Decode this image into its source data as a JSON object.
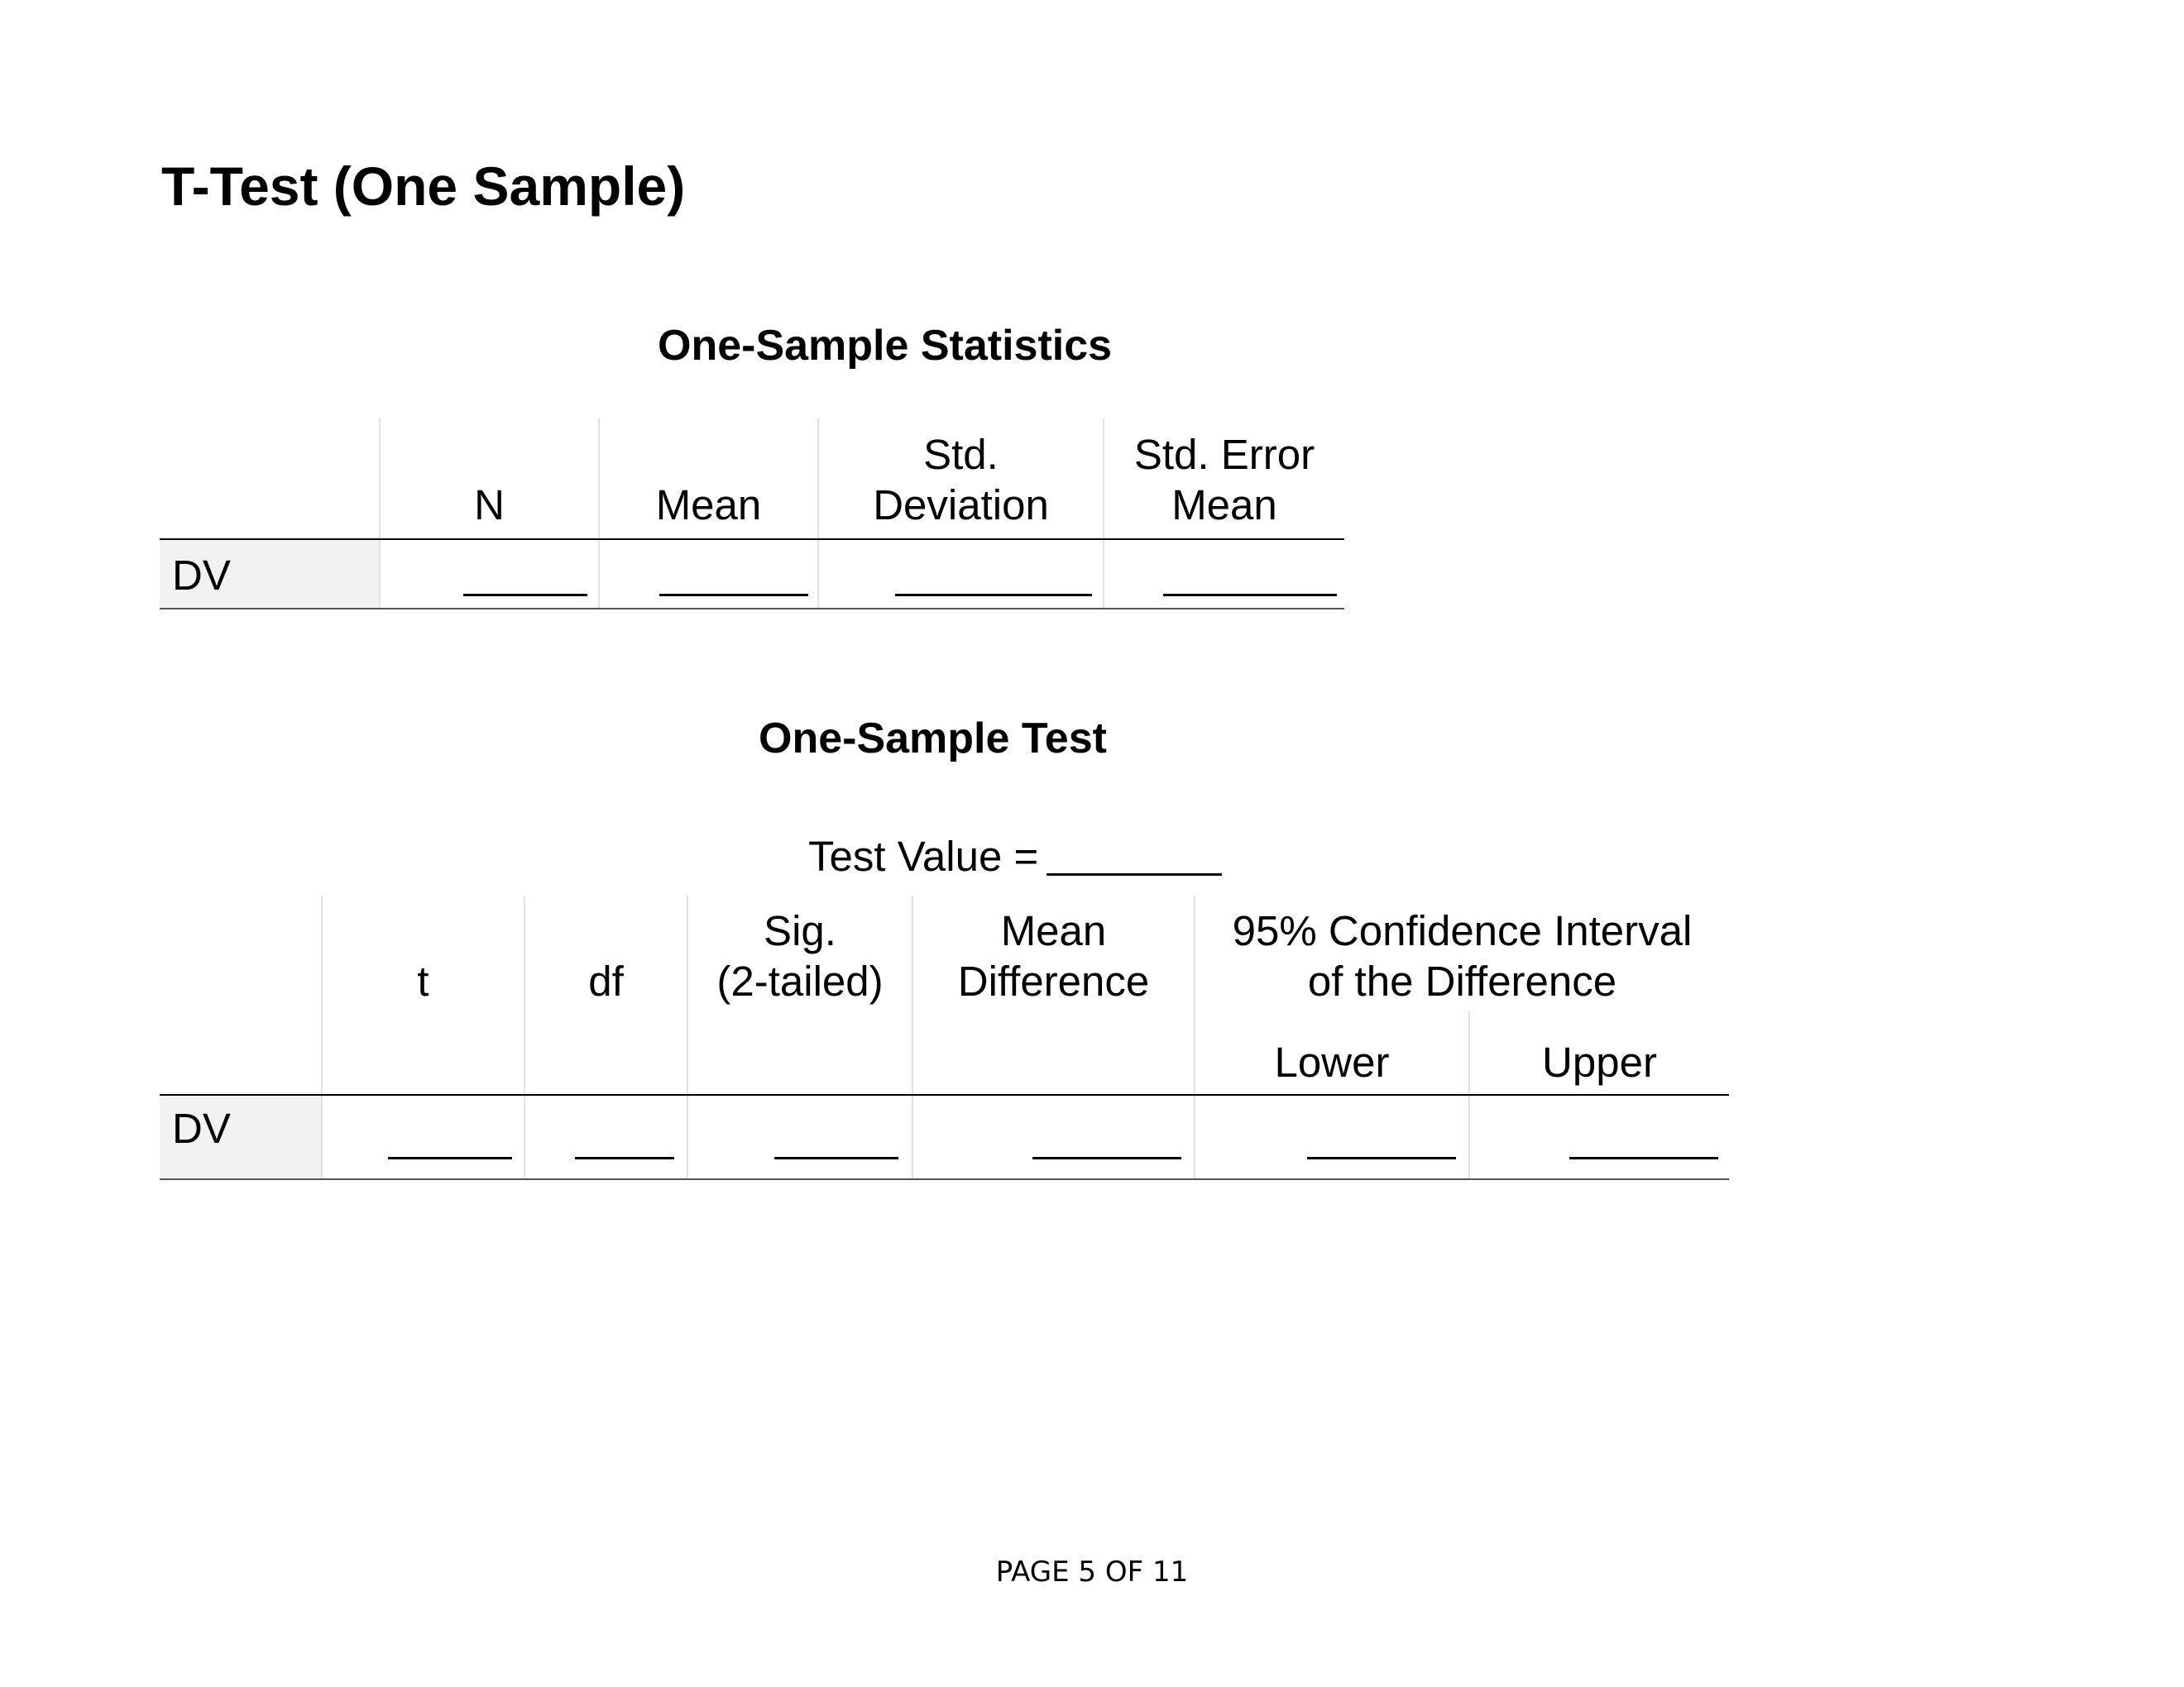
{
  "page_title": "T-Test (One Sample)",
  "statistics_table": {
    "title": "One-Sample Statistics",
    "headers": {
      "n": "N",
      "mean": "Mean",
      "std_deviation_line1": "Std.",
      "std_deviation_line2": "Deviation",
      "std_error_mean_line1": "Std. Error",
      "std_error_mean_line2": "Mean"
    },
    "row_label": "DV"
  },
  "test_table": {
    "title": "One-Sample Test",
    "test_value_label": "Test Value =",
    "headers": {
      "t": "t",
      "df": "df",
      "sig_line1": "Sig.",
      "sig_line2": "(2-tailed)",
      "mean_diff_line1": "Mean",
      "mean_diff_line2": "Difference",
      "ci_line1": "95% Confidence Interval",
      "ci_line2": "of the Difference",
      "lower": "Lower",
      "upper": "Upper"
    },
    "row_label": "DV"
  },
  "footer": {
    "page_label": "PAGE 5 OF 11"
  }
}
